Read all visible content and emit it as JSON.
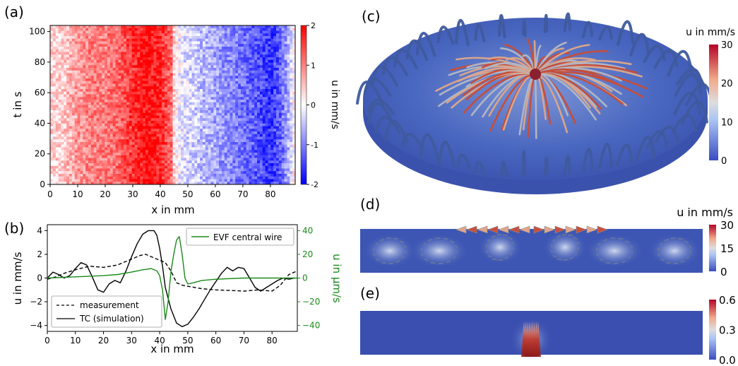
{
  "chart_data": [
    {
      "panel": "(a)",
      "type": "heatmap",
      "xlabel": "x in mm",
      "ylabel": "t in s",
      "xlim": [
        0,
        89
      ],
      "ylim": [
        0,
        104
      ],
      "x_ticks": [
        "0",
        "10",
        "20",
        "30",
        "40",
        "50",
        "60",
        "70",
        "80"
      ],
      "y_ticks": [
        "0",
        "20",
        "40",
        "60",
        "80",
        "100"
      ],
      "colorbar": {
        "label": "u in mm/s",
        "range": [
          -2,
          2
        ],
        "ticks": [
          "-2",
          "-1",
          "0",
          "1",
          "2"
        ],
        "colormap": "bwr"
      },
      "profile_x": [
        0,
        5,
        10,
        15,
        20,
        25,
        30,
        35,
        40,
        44,
        45,
        47,
        50,
        55,
        60,
        65,
        70,
        75,
        80,
        84,
        87,
        89
      ],
      "profile_u": [
        0.3,
        0.4,
        0.8,
        1.0,
        1.0,
        1.2,
        1.6,
        1.9,
        1.7,
        1.2,
        0.3,
        -0.1,
        -0.3,
        -0.5,
        -0.7,
        -0.9,
        -1.1,
        -1.3,
        -1.6,
        -1.2,
        -0.5,
        0.2
      ]
    },
    {
      "panel": "(b)",
      "type": "line",
      "xlabel": "x in mm",
      "ylabel_left": "u in mm/s",
      "ylabel_right": "u in μm/s",
      "xlim": [
        0,
        89
      ],
      "ylim_left": [
        -4.5,
        4.5
      ],
      "ylim_right": [
        -45,
        45
      ],
      "x_ticks": [
        "0",
        "10",
        "20",
        "30",
        "40",
        "50",
        "60",
        "70",
        "80"
      ],
      "y_ticks_left": [
        "−4",
        "−2",
        "0",
        "2",
        "4"
      ],
      "y_ticks_right": [
        "−40",
        "−20",
        "0",
        "20",
        "40"
      ],
      "series": [
        {
          "name": "measurement",
          "axis": "left",
          "style": "dashed",
          "color": "#000000",
          "x": [
            0,
            3,
            6,
            10,
            15,
            20,
            25,
            30,
            33,
            35,
            38,
            42,
            44,
            46,
            48,
            50,
            55,
            60,
            65,
            70,
            75,
            80,
            83,
            86,
            89
          ],
          "y": [
            -0.1,
            0.1,
            0.4,
            0.7,
            1.0,
            0.9,
            1.1,
            1.6,
            1.9,
            2.0,
            1.7,
            1.3,
            0.6,
            -0.4,
            -0.6,
            -0.7,
            -0.9,
            -1.0,
            -1.05,
            -1.1,
            -1.0,
            -1.1,
            -0.6,
            0.3,
            0.6
          ]
        },
        {
          "name": "TC (simulation)",
          "axis": "left",
          "style": "solid",
          "color": "#000000",
          "x": [
            0,
            2,
            4,
            6,
            8,
            10,
            12,
            14,
            16,
            18,
            20,
            22,
            24,
            26,
            28,
            30,
            32,
            34,
            36,
            38,
            39,
            40,
            41,
            42,
            44,
            46,
            48,
            50,
            52,
            54,
            56,
            58,
            60,
            62,
            64,
            66,
            68,
            70,
            72,
            74,
            76,
            78,
            80,
            82,
            84,
            86,
            88
          ],
          "y": [
            0.0,
            0.5,
            0.3,
            0.0,
            0.2,
            0.8,
            1.3,
            1.1,
            0.1,
            -1.0,
            -1.2,
            -0.5,
            -0.2,
            -0.4,
            0.6,
            1.8,
            2.9,
            3.7,
            4.0,
            4.0,
            3.6,
            2.5,
            1.0,
            -0.8,
            -2.6,
            -3.8,
            -4.1,
            -3.9,
            -3.3,
            -2.6,
            -1.8,
            -1.0,
            -0.3,
            0.4,
            0.9,
            0.6,
            0.9,
            0.8,
            0.0,
            -0.8,
            -1.1,
            -0.8,
            -0.5,
            -0.2,
            0.0,
            -0.1,
            0.0
          ]
        },
        {
          "name": "EVF central wire",
          "axis": "right",
          "style": "solid",
          "color": "#1a8a1a",
          "x": [
            0,
            10,
            20,
            25,
            30,
            34,
            37,
            39,
            40,
            41,
            42,
            43,
            44,
            45,
            46,
            47,
            48,
            49,
            50,
            52,
            55,
            60,
            70,
            80,
            89
          ],
          "y": [
            0,
            1,
            2,
            3,
            5,
            7,
            8,
            6,
            2,
            -10,
            -35,
            -20,
            5,
            20,
            32,
            35,
            20,
            0,
            -5,
            -4,
            -2,
            -1,
            0,
            0,
            0
          ]
        }
      ]
    },
    {
      "panel": "(c)",
      "type": "other",
      "description_free": true,
      "colorbar": {
        "label": "u in mm/s",
        "range": [
          0,
          30
        ],
        "ticks": [
          "0",
          "10",
          "20",
          "30"
        ]
      }
    },
    {
      "panel": "(d)",
      "type": "other",
      "colorbar": {
        "label": "u in mm/s",
        "range": [
          0,
          30
        ],
        "ticks": [
          "0",
          "15",
          "30"
        ]
      }
    },
    {
      "panel": "(e)",
      "type": "other",
      "colorbar": {
        "label": "",
        "range": [
          0,
          0.6
        ],
        "ticks": [
          "0.0",
          "0.3",
          "0.6"
        ]
      }
    }
  ],
  "panel_labels": {
    "a": "(a)",
    "b": "(b)",
    "c": "(c)",
    "d": "(d)",
    "e": "(e)"
  },
  "colors": {
    "red": "#e8000b",
    "blue": "#1f1fdc",
    "green": "#1a8a1a",
    "field_blue": "#3a56b8"
  }
}
